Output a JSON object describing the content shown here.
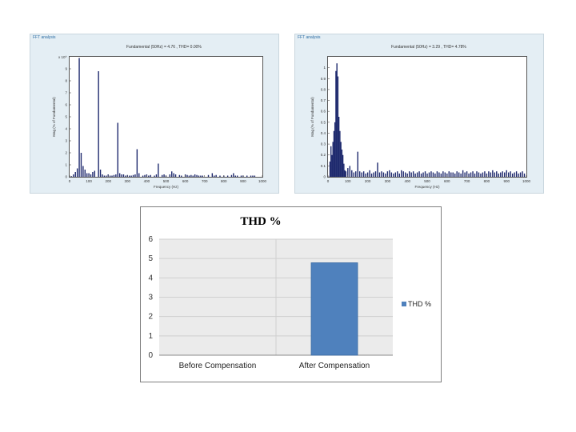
{
  "spectrum_left": {
    "panel_title": "FFT analysis",
    "heading": "Fundamental (50Hz) = 4.76 , THD= 0.00%",
    "xlabel": "Frequency (Hz)",
    "ylabel": "Mag (% of Fundamental)",
    "exponent_label": "x 10^",
    "x_ticks": [
      "0",
      "100",
      "200",
      "300",
      "400",
      "500",
      "600",
      "700",
      "800",
      "900",
      "1000"
    ],
    "y_ticks": [
      "0",
      "1",
      "2",
      "3",
      "4",
      "5",
      "6",
      "7",
      "8",
      "9"
    ]
  },
  "spectrum_right": {
    "panel_title": "FFT analysis",
    "heading": "Fundamental (50Hz) = 3.29 , THD= 4.78%",
    "xlabel": "Frequency (Hz)",
    "ylabel": "Mag (% of Fundamental)",
    "x_ticks": [
      "0",
      "100",
      "200",
      "300",
      "400",
      "500",
      "600",
      "700",
      "800",
      "900",
      "1000"
    ],
    "y_ticks": [
      "0",
      "0.1",
      "0.2",
      "0.3",
      "0.4",
      "0.5",
      "0.6",
      "0.7",
      "0.8",
      "0.9",
      "1"
    ]
  },
  "chart_data": [
    {
      "type": "bar",
      "title": "",
      "xlabel": "Frequency (Hz)",
      "ylabel": "Mag (% of Fundamental)",
      "xlim": [
        0,
        1000
      ],
      "ylim": [
        0,
        10
      ],
      "x": [
        10,
        20,
        30,
        40,
        50,
        60,
        70,
        80,
        90,
        100,
        110,
        120,
        130,
        150,
        160,
        170,
        180,
        190,
        200,
        210,
        220,
        230,
        240,
        250,
        260,
        270,
        280,
        290,
        300,
        310,
        320,
        330,
        340,
        350,
        360,
        380,
        390,
        400,
        410,
        420,
        440,
        450,
        460,
        480,
        490,
        500,
        520,
        530,
        540,
        550,
        570,
        580,
        600,
        610,
        620,
        630,
        640,
        650,
        660,
        670,
        680,
        690,
        720,
        740,
        750,
        760,
        780,
        800,
        820,
        840,
        850,
        860,
        870,
        890,
        900,
        920,
        940,
        950,
        960
      ],
      "values": [
        0.05,
        0.2,
        0.4,
        0.7,
        9.9,
        2.0,
        0.9,
        0.6,
        0.3,
        0.3,
        0.2,
        0.4,
        0.5,
        8.8,
        0.6,
        0.2,
        0.1,
        0.1,
        0.2,
        0.1,
        0.1,
        0.15,
        0.2,
        4.5,
        0.3,
        0.2,
        0.2,
        0.1,
        0.15,
        0.1,
        0.1,
        0.15,
        0.2,
        2.3,
        0.3,
        0.1,
        0.15,
        0.2,
        0.1,
        0.15,
        0.1,
        0.2,
        1.1,
        0.15,
        0.2,
        0.1,
        0.2,
        0.45,
        0.3,
        0.2,
        0.15,
        0.1,
        0.2,
        0.15,
        0.1,
        0.15,
        0.1,
        0.2,
        0.15,
        0.1,
        0.1,
        0.1,
        0.15,
        0.3,
        0.1,
        0.15,
        0.1,
        0.1,
        0.1,
        0.15,
        0.3,
        0.1,
        0.1,
        0.1,
        0.1,
        0.1,
        0.1,
        0.1,
        0.1
      ],
      "grid": false
    },
    {
      "type": "bar",
      "title": "",
      "xlabel": "Frequency (Hz)",
      "ylabel": "Mag (% of Fundamental)",
      "xlim": [
        0,
        1000
      ],
      "ylim": [
        0,
        1.1
      ],
      "x": [
        10,
        15,
        20,
        25,
        30,
        35,
        40,
        45,
        50,
        55,
        60,
        65,
        70,
        75,
        80,
        85,
        90,
        100,
        110,
        120,
        130,
        140,
        150,
        160,
        170,
        180,
        190,
        200,
        210,
        220,
        230,
        240,
        250,
        260,
        270,
        280,
        290,
        300,
        310,
        320,
        330,
        340,
        350,
        360,
        370,
        380,
        390,
        400,
        410,
        420,
        430,
        440,
        450,
        460,
        470,
        480,
        490,
        500,
        510,
        520,
        530,
        540,
        550,
        560,
        570,
        580,
        590,
        600,
        610,
        620,
        630,
        640,
        650,
        660,
        670,
        680,
        690,
        700,
        710,
        720,
        730,
        740,
        750,
        760,
        770,
        780,
        790,
        800,
        810,
        820,
        830,
        840,
        850,
        860,
        870,
        880,
        890,
        900,
        910,
        920,
        930,
        940,
        950,
        960,
        970,
        980,
        990
      ],
      "values": [
        0.14,
        0.28,
        0.2,
        0.32,
        0.42,
        0.5,
        0.97,
        1.04,
        0.92,
        0.55,
        0.42,
        0.32,
        0.25,
        0.2,
        0.12,
        0.06,
        0.05,
        0.08,
        0.1,
        0.06,
        0.04,
        0.05,
        0.23,
        0.05,
        0.04,
        0.05,
        0.03,
        0.04,
        0.06,
        0.03,
        0.04,
        0.05,
        0.13,
        0.04,
        0.05,
        0.04,
        0.03,
        0.05,
        0.06,
        0.04,
        0.03,
        0.04,
        0.05,
        0.03,
        0.06,
        0.05,
        0.04,
        0.03,
        0.05,
        0.04,
        0.05,
        0.03,
        0.04,
        0.05,
        0.03,
        0.04,
        0.05,
        0.03,
        0.04,
        0.05,
        0.04,
        0.03,
        0.05,
        0.04,
        0.03,
        0.05,
        0.04,
        0.03,
        0.05,
        0.04,
        0.04,
        0.03,
        0.05,
        0.04,
        0.03,
        0.06,
        0.04,
        0.05,
        0.03,
        0.04,
        0.05,
        0.03,
        0.05,
        0.04,
        0.03,
        0.04,
        0.05,
        0.03,
        0.05,
        0.04,
        0.06,
        0.04,
        0.05,
        0.03,
        0.04,
        0.05,
        0.04,
        0.06,
        0.04,
        0.05,
        0.03,
        0.04,
        0.05,
        0.03,
        0.04,
        0.05,
        0.03
      ],
      "grid": false
    },
    {
      "type": "bar",
      "title": "THD %",
      "categories": [
        "Before Compensation",
        "After Compensation"
      ],
      "series": [
        {
          "name": "THD %",
          "values": [
            0,
            4.78
          ]
        }
      ],
      "xlabel": "",
      "ylabel": "",
      "ylim": [
        0,
        6
      ],
      "y_ticks": [
        "0",
        "1",
        "2",
        "3",
        "4",
        "5",
        "6"
      ],
      "grid": true,
      "legend": "right",
      "bar_color": "#4f81bd"
    }
  ]
}
